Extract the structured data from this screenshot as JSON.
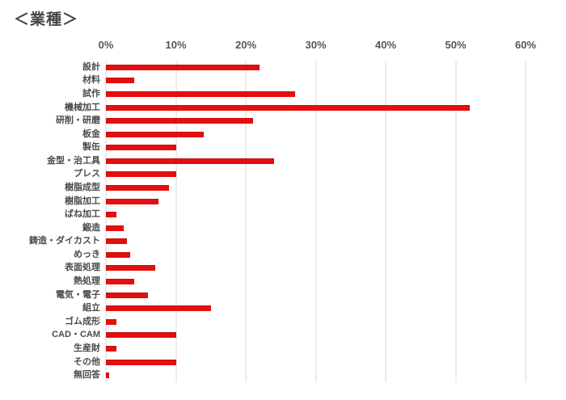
{
  "title": "＜業種＞",
  "colors": {
    "bar": "#e30f0f",
    "grid": "#d9d9d9",
    "title_text": "#454545",
    "axis_text": "#555555",
    "label_text": "#4a4a4a"
  },
  "chart_data": {
    "type": "bar",
    "orientation": "horizontal",
    "title": "＜業種＞",
    "unit": "%",
    "xlim": [
      0,
      60
    ],
    "x_ticks": [
      "0%",
      "10%",
      "20%",
      "30%",
      "40%",
      "50%",
      "60%"
    ],
    "grid": true,
    "legend": "none",
    "categories": [
      "設計",
      "材料",
      "試作",
      "機械加工",
      "研削・研磨",
      "板金",
      "製缶",
      "金型・治工具",
      "プレス",
      "樹脂成型",
      "樹脂加工",
      "ばね加工",
      "鍛造",
      "鋳造・ダイカスト",
      "めっき",
      "表面処理",
      "熱処理",
      "電気・電子",
      "組立",
      "ゴム成形",
      "CAD・CAM",
      "生産財",
      "その他",
      "無回答"
    ],
    "values": [
      22,
      4,
      27,
      52,
      21,
      14,
      10,
      24,
      10,
      9,
      7.5,
      1.5,
      2.5,
      3,
      3.5,
      7,
      4,
      6,
      15,
      1.5,
      10,
      1.5,
      10,
      0.5
    ]
  }
}
